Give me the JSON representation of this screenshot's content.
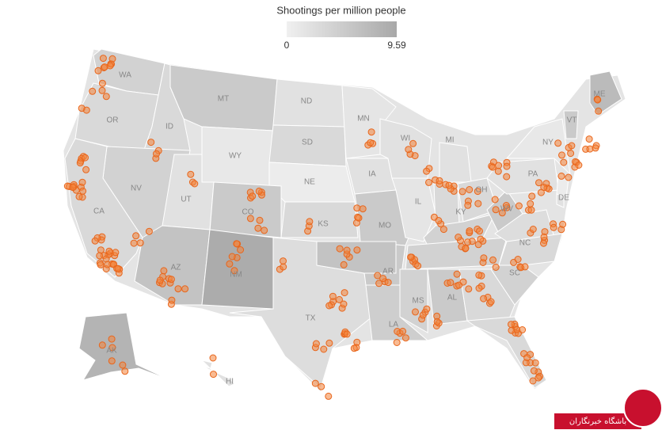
{
  "legend": {
    "title": "Shootings per million people",
    "min": 0,
    "max": 9.59,
    "min_color": "#f0f0f0",
    "max_color": "#a8a8a8"
  },
  "states": [
    {
      "abbr": "WA",
      "value": 4
    },
    {
      "abbr": "OR",
      "value": 3
    },
    {
      "abbr": "ID",
      "value": 3
    },
    {
      "abbr": "MT",
      "value": 5
    },
    {
      "abbr": "WY",
      "value": 1
    },
    {
      "abbr": "ND",
      "value": 2
    },
    {
      "abbr": "SD",
      "value": 3
    },
    {
      "abbr": "NE",
      "value": 0.5
    },
    {
      "abbr": "KS",
      "value": 3
    },
    {
      "abbr": "NV",
      "value": 4
    },
    {
      "abbr": "CA",
      "value": 3
    },
    {
      "abbr": "UT",
      "value": 2
    },
    {
      "abbr": "AZ",
      "value": 6
    },
    {
      "abbr": "CO",
      "value": 5
    },
    {
      "abbr": "NM",
      "value": 9
    },
    {
      "abbr": "TX",
      "value": 2.5
    },
    {
      "abbr": "MN",
      "value": 1.5
    },
    {
      "abbr": "IA",
      "value": 2
    },
    {
      "abbr": "MO",
      "value": 5
    },
    {
      "abbr": "AR",
      "value": 5
    },
    {
      "abbr": "LA",
      "value": 4.5
    },
    {
      "abbr": "MS",
      "value": 4
    },
    {
      "abbr": "AL",
      "value": 5
    },
    {
      "abbr": null,
      "value": 3
    },
    {
      "abbr": "WI",
      "value": 2
    },
    {
      "abbr": "IL",
      "value": 1.5
    },
    {
      "abbr": "MI",
      "value": 2
    },
    {
      "abbr": null,
      "value": 3
    },
    {
      "abbr": "OH",
      "value": 3
    },
    {
      "abbr": "KY",
      "value": 4
    },
    {
      "abbr": null,
      "value": 4
    },
    {
      "abbr": "WV",
      "value": 5
    },
    {
      "abbr": null,
      "value": 2.5
    },
    {
      "abbr": "NC",
      "value": 3
    },
    {
      "abbr": "SC",
      "value": 4
    },
    {
      "abbr": null,
      "value": 3
    },
    {
      "abbr": "PA",
      "value": 2
    },
    {
      "abbr": "NY",
      "value": 1
    },
    {
      "abbr": "VT",
      "value": 5
    },
    {
      "abbr": "ME",
      "value": 7
    },
    {
      "abbr": null,
      "value": 0.5
    },
    {
      "abbr": "DE",
      "value": 2
    },
    {
      "abbr": null,
      "value": 6
    },
    {
      "abbr": "AK",
      "value": 8
    },
    {
      "abbr": "HI",
      "value": 2
    }
  ],
  "watermark": "باشگاه خبرنگاران"
}
